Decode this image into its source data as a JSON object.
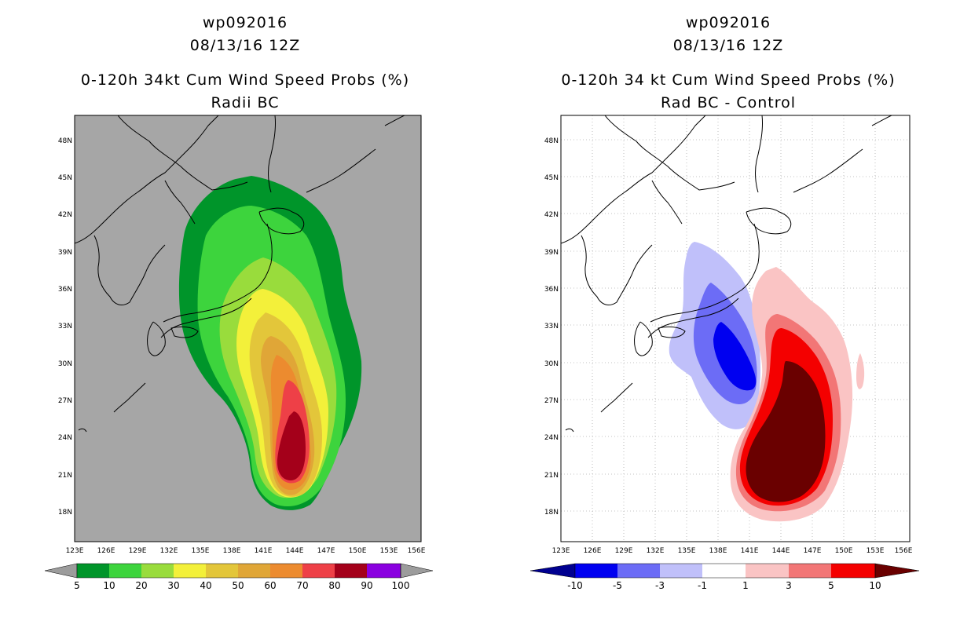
{
  "left": {
    "storm_id": "wp092016",
    "date": "08/13/16 12Z",
    "title": "0-120h 34kt Cum Wind Speed Probs (%)",
    "subtitle": "Radii BC",
    "lat_labels": [
      "48N",
      "45N",
      "42N",
      "39N",
      "36N",
      "33N",
      "30N",
      "27N",
      "24N",
      "21N",
      "18N"
    ],
    "lon_labels": [
      "123E",
      "126E",
      "129E",
      "132E",
      "135E",
      "138E",
      "141E",
      "144E",
      "147E",
      "150E",
      "153E",
      "156E"
    ],
    "colorbar": {
      "labels": [
        "5",
        "10",
        "20",
        "30",
        "40",
        "50",
        "60",
        "70",
        "80",
        "90",
        "100"
      ],
      "colors": [
        "#00952a",
        "#3dd43d",
        "#99dc3c",
        "#f3f03a",
        "#e3c63a",
        "#e0a637",
        "#ec8b2f",
        "#ee4047",
        "#a4001a",
        "#8a00e0"
      ],
      "end_color": "#9c9c9c"
    }
  },
  "right": {
    "storm_id": "wp092016",
    "date": "08/13/16 12Z",
    "title": "0-120h 34 kt Cum Wind Speed Probs (%)",
    "subtitle": "Rad BC - Control",
    "lat_labels": [
      "48N",
      "45N",
      "42N",
      "39N",
      "36N",
      "33N",
      "30N",
      "27N",
      "24N",
      "21N",
      "18N"
    ],
    "lon_labels": [
      "123E",
      "126E",
      "129E",
      "132E",
      "135E",
      "138E",
      "141E",
      "144E",
      "147E",
      "150E",
      "153E",
      "156E"
    ],
    "colorbar": {
      "labels": [
        "-10",
        "-5",
        "-3",
        "-1",
        "1",
        "3",
        "5",
        "10"
      ],
      "colors": [
        "#0000f0",
        "#6c6cf6",
        "#c0c0fa",
        "#ffffff",
        "#fac4c4",
        "#f27676",
        "#f40000"
      ],
      "end_low": "#000090",
      "end_high": "#6a0000"
    }
  }
}
